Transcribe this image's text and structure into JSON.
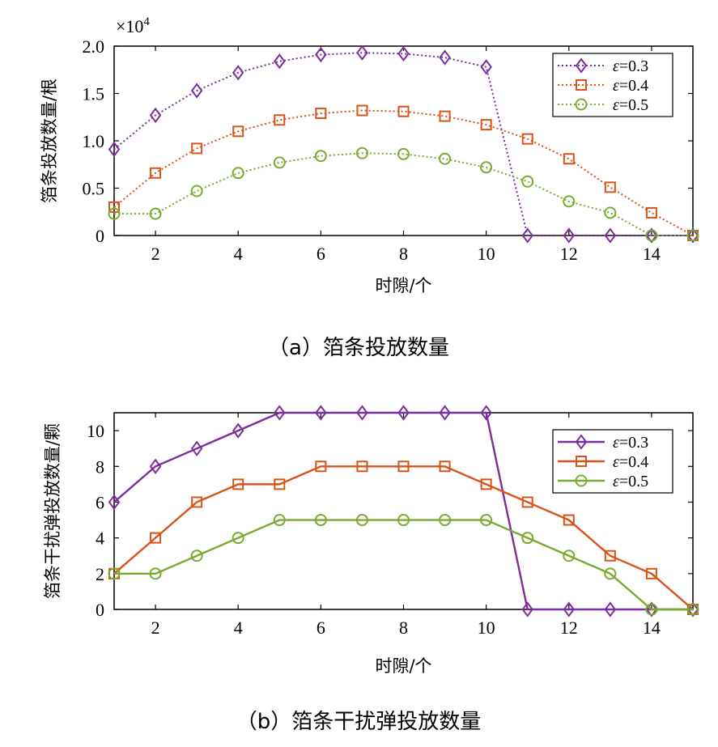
{
  "chart_data": [
    {
      "type": "line",
      "line_style": "dotted",
      "x": [
        1,
        2,
        3,
        4,
        5,
        6,
        7,
        8,
        9,
        10,
        11,
        12,
        13,
        14,
        15
      ],
      "xlim": [
        1,
        15
      ],
      "xticks": [
        2,
        4,
        6,
        8,
        10,
        12,
        14
      ],
      "xtick_labels": [
        "2",
        "4",
        "6",
        "8",
        "10",
        "12",
        "14"
      ],
      "ylim": [
        0,
        2.0
      ],
      "yticks": [
        0,
        0.5,
        1.0,
        1.5,
        2.0
      ],
      "ytick_labels": [
        "0",
        "0.5",
        "1.0",
        "1.5",
        "2.0"
      ],
      "y_multiplier": "×10",
      "y_multiplier_exp": "4",
      "xlabel": "时隙/个",
      "ylabel": "箔条投放数量/根",
      "caption": "（a）箔条投放数量",
      "legend_position": "top-right",
      "series": [
        {
          "name": "ε=0.3",
          "eps": "ε",
          "val": "=0.3",
          "marker": "diamond",
          "color": "#7b2f9b",
          "values": [
            0.91,
            1.27,
            1.53,
            1.72,
            1.84,
            1.91,
            1.93,
            1.92,
            1.88,
            1.78,
            0,
            0,
            0,
            0,
            0
          ]
        },
        {
          "name": "ε=0.4",
          "eps": "ε",
          "val": "=0.4",
          "marker": "square",
          "color": "#d95319",
          "values": [
            0.3,
            0.66,
            0.92,
            1.1,
            1.22,
            1.29,
            1.32,
            1.31,
            1.26,
            1.17,
            1.02,
            0.81,
            0.51,
            0.24,
            0
          ]
        },
        {
          "name": "ε=0.5",
          "eps": "ε",
          "val": "=0.5",
          "marker": "circle",
          "color": "#77ac30",
          "values": [
            0.23,
            0.23,
            0.47,
            0.66,
            0.77,
            0.84,
            0.87,
            0.86,
            0.81,
            0.72,
            0.57,
            0.36,
            0.24,
            0,
            0
          ]
        }
      ]
    },
    {
      "type": "line",
      "line_style": "solid",
      "x": [
        1,
        2,
        3,
        4,
        5,
        6,
        7,
        8,
        9,
        10,
        11,
        12,
        13,
        14,
        15
      ],
      "xlim": [
        1,
        15
      ],
      "xticks": [
        2,
        4,
        6,
        8,
        10,
        12,
        14
      ],
      "xtick_labels": [
        "2",
        "4",
        "6",
        "8",
        "10",
        "12",
        "14"
      ],
      "ylim": [
        0,
        11
      ],
      "yticks": [
        0,
        2,
        4,
        6,
        8,
        10
      ],
      "ytick_labels": [
        "0",
        "2",
        "4",
        "6",
        "8",
        "10"
      ],
      "xlabel": "时隙/个",
      "ylabel": "箔条干扰弹投放数量/颗",
      "caption": "（b）箔条干扰弹投放数量",
      "legend_position": "top-right",
      "series": [
        {
          "name": "ε=0.3",
          "eps": "ε",
          "val": "=0.3",
          "marker": "diamond",
          "color": "#7b2f9b",
          "values": [
            6,
            8,
            9,
            10,
            11,
            11,
            11,
            11,
            11,
            11,
            0,
            0,
            0,
            0,
            0
          ]
        },
        {
          "name": "ε=0.4",
          "eps": "ε",
          "val": "=0.4",
          "marker": "square",
          "color": "#d95319",
          "values": [
            2,
            4,
            6,
            7,
            7,
            8,
            8,
            8,
            8,
            7,
            6,
            5,
            3,
            2,
            0
          ]
        },
        {
          "name": "ε=0.5",
          "eps": "ε",
          "val": "=0.5",
          "marker": "circle",
          "color": "#77ac30",
          "values": [
            2,
            2,
            3,
            4,
            5,
            5,
            5,
            5,
            5,
            5,
            4,
            3,
            2,
            0,
            0
          ]
        }
      ]
    }
  ]
}
